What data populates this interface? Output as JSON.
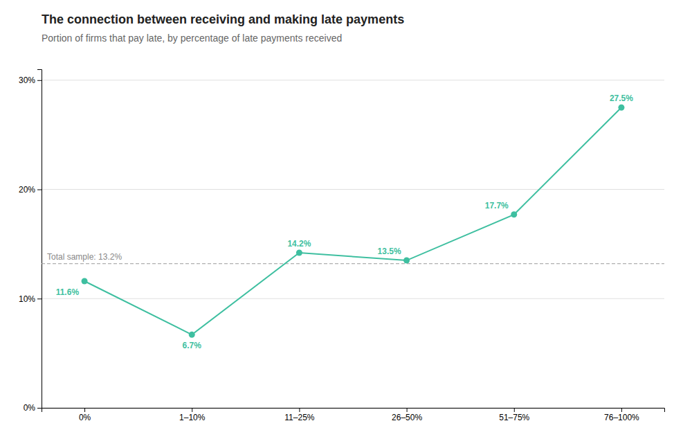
{
  "chart_data": {
    "type": "line",
    "title": "The connection between receiving and making late payments",
    "subtitle": "Portion of firms that pay late, by percentage of late payments received",
    "categories": [
      "0%",
      "1–10%",
      "11–25%",
      "26–50%",
      "51–75%",
      "76–100%"
    ],
    "values": [
      11.6,
      6.7,
      14.2,
      13.5,
      17.7,
      27.5
    ],
    "value_labels": [
      "11.6%",
      "6.7%",
      "14.2%",
      "13.5%",
      "17.7%",
      "27.5%"
    ],
    "data_labels": true,
    "color": "#3ebfa0",
    "marker": "circle",
    "ylim": [
      0,
      31
    ],
    "yticks": [
      {
        "value": 0,
        "label": "0%"
      },
      {
        "value": 10,
        "label": "10%"
      },
      {
        "value": 20,
        "label": "20%"
      },
      {
        "value": 30,
        "label": "30%"
      }
    ],
    "grid": true,
    "reference_line": {
      "value": 13.2,
      "label": "Total sample: 13.2%"
    }
  }
}
